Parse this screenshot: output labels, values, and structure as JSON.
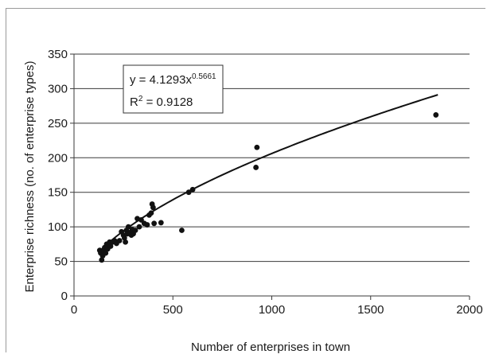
{
  "chart_data": {
    "type": "scatter",
    "xlabel": "Number of enterprises in town",
    "ylabel": "Enterprise richness (no. of enterprise types)",
    "xlim": [
      0,
      2000
    ],
    "ylim": [
      0,
      350
    ],
    "x_ticks": [
      "0",
      "500",
      "1000",
      "1500",
      "2000"
    ],
    "y_ticks": [
      "0",
      "50",
      "100",
      "150",
      "200",
      "250",
      "300",
      "350"
    ],
    "grid": "horizontal",
    "series": [
      {
        "points": [
          [
            130,
            66
          ],
          [
            135,
            62
          ],
          [
            140,
            52
          ],
          [
            145,
            58
          ],
          [
            150,
            65
          ],
          [
            155,
            70
          ],
          [
            160,
            62
          ],
          [
            165,
            75
          ],
          [
            170,
            68
          ],
          [
            175,
            73
          ],
          [
            180,
            78
          ],
          [
            185,
            72
          ],
          [
            195,
            78
          ],
          [
            205,
            80
          ],
          [
            215,
            76
          ],
          [
            230,
            80
          ],
          [
            240,
            93
          ],
          [
            250,
            88
          ],
          [
            255,
            84
          ],
          [
            260,
            78
          ],
          [
            265,
            95
          ],
          [
            270,
            90
          ],
          [
            275,
            100
          ],
          [
            285,
            92
          ],
          [
            290,
            88
          ],
          [
            295,
            96
          ],
          [
            300,
            90
          ],
          [
            310,
            95
          ],
          [
            320,
            112
          ],
          [
            330,
            100
          ],
          [
            340,
            110
          ],
          [
            355,
            105
          ],
          [
            370,
            103
          ],
          [
            380,
            117
          ],
          [
            390,
            120
          ],
          [
            395,
            133
          ],
          [
            400,
            128
          ],
          [
            405,
            105
          ],
          [
            440,
            106
          ],
          [
            545,
            95
          ],
          [
            580,
            150
          ],
          [
            600,
            154
          ],
          [
            920,
            186
          ],
          [
            925,
            215
          ],
          [
            1830,
            262
          ]
        ]
      }
    ],
    "trendline": {
      "type": "power",
      "coefficient": 4.1293,
      "exponent": 0.5661,
      "x_range": [
        130,
        1840
      ]
    },
    "annotation": {
      "equation_prefix": "y = 4.1293x",
      "equation_exponent": "0.5661",
      "r2_prefix": "R",
      "r2_exponent": "2",
      "r2_value": " = 0.9128"
    }
  }
}
